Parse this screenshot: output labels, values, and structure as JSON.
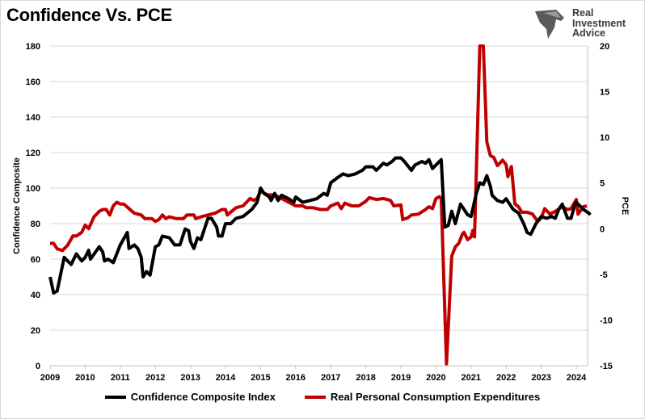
{
  "chart_data": {
    "type": "line",
    "title": "Confidence Vs. PCE",
    "xlabel": "",
    "ylabel": "Confidence Composite",
    "y2label": "PCE",
    "xlim": [
      2009,
      2024.5
    ],
    "ylim": [
      0,
      180
    ],
    "y2lim": [
      -15,
      20
    ],
    "x_ticks": [
      "2009",
      "2010",
      "2011",
      "2012",
      "2013",
      "2014",
      "2015",
      "2016",
      "2017",
      "2018",
      "2019",
      "2020",
      "2021",
      "2022",
      "2023",
      "2024"
    ],
    "y_ticks": [
      "0",
      "20",
      "40",
      "60",
      "80",
      "100",
      "120",
      "140",
      "160",
      "180"
    ],
    "y2_ticks": [
      "-15",
      "-10",
      "-5",
      "0",
      "5",
      "10",
      "15",
      "20"
    ],
    "grid": "horizontal",
    "legend_position": "bottom",
    "series": [
      {
        "name": "Confidence Composite Index",
        "axis": "left",
        "color": "#000000",
        "x": [
          2009.0,
          2009.1,
          2009.2,
          2009.4,
          2009.6,
          2009.75,
          2009.9,
          2010.0,
          2010.1,
          2010.15,
          2010.4,
          2010.5,
          2010.55,
          2010.65,
          2010.8,
          2011.0,
          2011.2,
          2011.25,
          2011.4,
          2011.5,
          2011.6,
          2011.65,
          2011.75,
          2011.85,
          2012.0,
          2012.1,
          2012.2,
          2012.4,
          2012.55,
          2012.7,
          2012.85,
          2012.95,
          2013.0,
          2013.1,
          2013.2,
          2013.3,
          2013.5,
          2013.6,
          2013.75,
          2013.8,
          2013.9,
          2014.0,
          2014.15,
          2014.3,
          2014.5,
          2014.75,
          2014.9,
          2015.0,
          2015.1,
          2015.25,
          2015.3,
          2015.4,
          2015.5,
          2015.6,
          2015.8,
          2015.95,
          2016.0,
          2016.2,
          2016.4,
          2016.6,
          2016.8,
          2016.9,
          2017.0,
          2017.2,
          2017.35,
          2017.5,
          2017.7,
          2017.9,
          2018.0,
          2018.2,
          2018.3,
          2018.5,
          2018.6,
          2018.75,
          2018.85,
          2019.0,
          2019.1,
          2019.3,
          2019.4,
          2019.6,
          2019.7,
          2019.8,
          2019.9,
          2020.0,
          2020.15,
          2020.25,
          2020.35,
          2020.45,
          2020.55,
          2020.7,
          2020.8,
          2020.9,
          2021.0,
          2021.15,
          2021.25,
          2021.35,
          2021.45,
          2021.55,
          2021.6,
          2021.75,
          2021.9,
          2022.0,
          2022.2,
          2022.35,
          2022.5,
          2022.6,
          2022.7,
          2022.85,
          2023.0,
          2023.15,
          2023.3,
          2023.4,
          2023.5,
          2023.6,
          2023.75,
          2023.85,
          2023.95,
          2024.0,
          2024.2,
          2024.35,
          2024.4
        ],
        "values": [
          50,
          41,
          42,
          61,
          57,
          63,
          59,
          61,
          65,
          60,
          67,
          64,
          59,
          60,
          58,
          68,
          75,
          66,
          68,
          66,
          61,
          50,
          53,
          51,
          67,
          68,
          73,
          72,
          68,
          68,
          77,
          76,
          70,
          66,
          72,
          71,
          83,
          83,
          78,
          73,
          73,
          80,
          80,
          83,
          84,
          88,
          92,
          100,
          97,
          95,
          93,
          97,
          93,
          96,
          94,
          92,
          95,
          92,
          93,
          94,
          97,
          96,
          103,
          106,
          108,
          107,
          108,
          110,
          112,
          112,
          110,
          114,
          113,
          115,
          117,
          117,
          115,
          110,
          113,
          115,
          114,
          116,
          111,
          113,
          116,
          78,
          79,
          87,
          80,
          91,
          88,
          85,
          84,
          97,
          103,
          102,
          107,
          101,
          96,
          93,
          92,
          94,
          88,
          86,
          80,
          75,
          74,
          80,
          84,
          83,
          84,
          83,
          88,
          91,
          83,
          83,
          90,
          92,
          88,
          86,
          85
        ]
      },
      {
        "name": "Real Personal Consumption Expenditures",
        "axis": "right",
        "color": "#c00000",
        "x": [
          2009.0,
          2009.1,
          2009.2,
          2009.35,
          2009.5,
          2009.65,
          2009.75,
          2009.9,
          2010.0,
          2010.1,
          2010.25,
          2010.4,
          2010.5,
          2010.6,
          2010.7,
          2010.8,
          2010.9,
          2011.0,
          2011.1,
          2011.4,
          2011.6,
          2011.7,
          2011.9,
          2012.0,
          2012.1,
          2012.2,
          2012.3,
          2012.4,
          2012.6,
          2012.8,
          2012.9,
          2013.1,
          2013.15,
          2013.3,
          2013.5,
          2013.7,
          2013.9,
          2014.0,
          2014.05,
          2014.3,
          2014.5,
          2014.7,
          2014.8,
          2014.9,
          2015.0,
          2015.2,
          2015.4,
          2015.6,
          2015.8,
          2016.0,
          2016.2,
          2016.3,
          2016.5,
          2016.7,
          2016.9,
          2017.0,
          2017.2,
          2017.3,
          2017.4,
          2017.6,
          2017.8,
          2018.0,
          2018.1,
          2018.3,
          2018.5,
          2018.7,
          2018.8,
          2019.0,
          2019.05,
          2019.2,
          2019.3,
          2019.5,
          2019.7,
          2019.8,
          2019.9,
          2020.0,
          2020.1,
          2020.15,
          2020.3,
          2020.45,
          2020.55,
          2020.65,
          2020.75,
          2020.8,
          2020.9,
          2021.0,
          2021.05,
          2021.1,
          2021.25,
          2021.35,
          2021.45,
          2021.55,
          2021.65,
          2021.75,
          2021.9,
          2022.0,
          2022.05,
          2022.15,
          2022.25,
          2022.35,
          2022.45,
          2022.6,
          2022.75,
          2022.9,
          2023.0,
          2023.1,
          2023.25,
          2023.4,
          2023.6,
          2023.75,
          2023.85,
          2024.0,
          2024.05,
          2024.2,
          2024.3
        ],
        "values": [
          -1.6,
          -1.6,
          -2.2,
          -2.4,
          -1.8,
          -0.8,
          -0.8,
          -0.4,
          0.4,
          0.0,
          1.3,
          1.9,
          2.1,
          2.1,
          1.5,
          2.5,
          2.9,
          2.7,
          2.7,
          1.7,
          1.5,
          1.1,
          1.1,
          0.8,
          1.0,
          1.5,
          1.1,
          1.3,
          1.1,
          1.1,
          1.5,
          1.5,
          1.1,
          1.3,
          1.5,
          1.7,
          2.1,
          2.1,
          1.5,
          2.3,
          2.5,
          3.3,
          3.1,
          3.3,
          4.1,
          3.7,
          3.7,
          3.3,
          2.9,
          2.5,
          2.5,
          2.3,
          2.3,
          2.1,
          2.1,
          2.5,
          2.8,
          2.2,
          2.8,
          2.5,
          2.5,
          3.0,
          3.4,
          3.2,
          3.3,
          3.1,
          2.5,
          2.6,
          1.0,
          1.2,
          1.5,
          1.6,
          2.1,
          2.4,
          2.2,
          3.3,
          3.5,
          3.3,
          -14.8,
          -3.0,
          -2.0,
          -1.6,
          -0.6,
          -0.4,
          -1.2,
          -0.9,
          -0.2,
          -0.9,
          20,
          20,
          9.5,
          8.0,
          7.8,
          6.9,
          7.5,
          7.0,
          5.7,
          6.8,
          2.7,
          2.4,
          1.8,
          1.8,
          1.6,
          0.8,
          1.2,
          2.2,
          1.6,
          1.9,
          2.4,
          2.1,
          2.2,
          3.2,
          1.6,
          2.4,
          2.5
        ]
      }
    ]
  },
  "logo": {
    "line1": "Real",
    "line2": "Investment",
    "line3": "Advice"
  }
}
